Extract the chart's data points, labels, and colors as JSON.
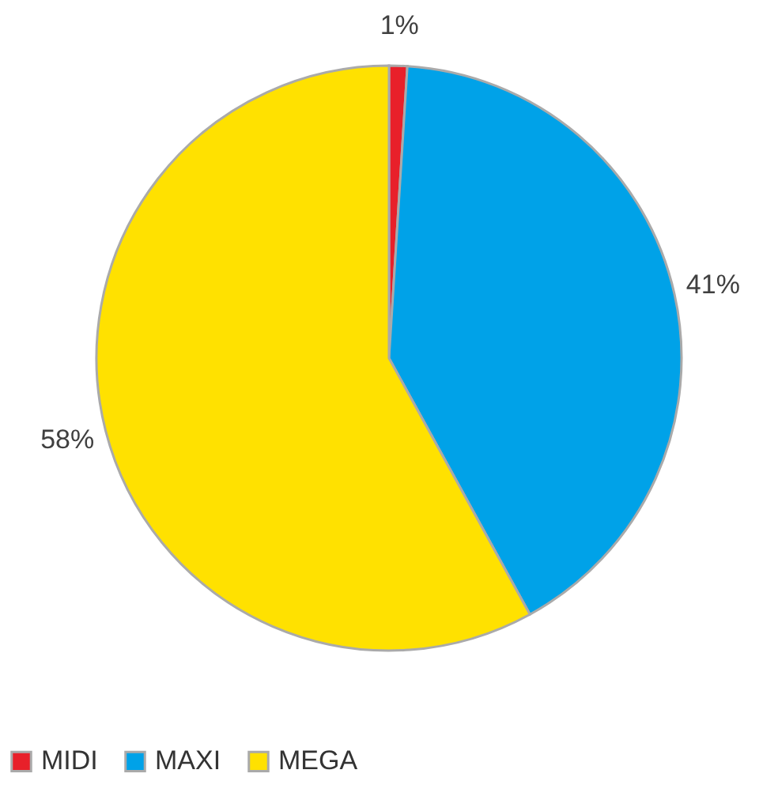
{
  "chart_data": {
    "type": "pie",
    "categories": [
      "MIDI",
      "MAXI",
      "MEGA"
    ],
    "values": [
      1,
      41,
      58
    ],
    "colors": [
      "#e8202a",
      "#00a2e8",
      "#ffe100"
    ],
    "value_labels": [
      "1%",
      "41%",
      "58%"
    ],
    "legend": "bottom"
  }
}
